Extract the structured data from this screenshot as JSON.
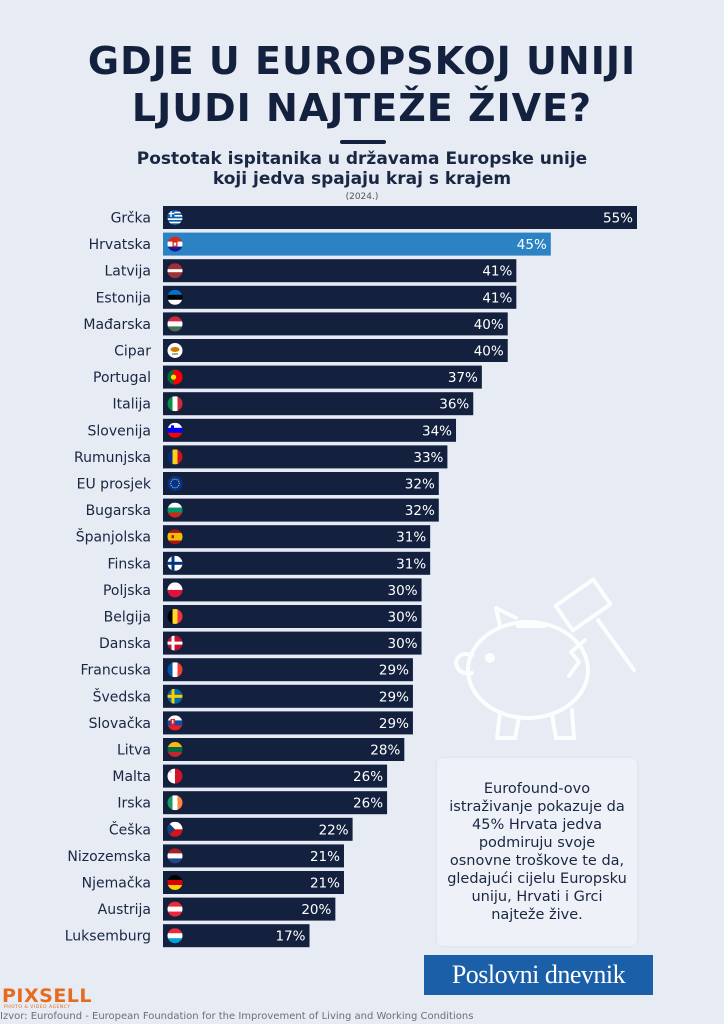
{
  "header": {
    "title_line1": "GDJE U EUROPSKOJ UNIJI",
    "title_line2": "LJUDI NAJTEŽE ŽIVE?",
    "subtitle_line1": "Postotak ispitanika u državama Europske unije",
    "subtitle_line2": "koji jedva spajaju kraj s krajem",
    "year": "(2024.)"
  },
  "chart_data": {
    "type": "bar",
    "orientation": "horizontal",
    "title": "",
    "xlabel": "",
    "ylabel": "",
    "xlim": [
      0,
      55
    ],
    "grid": false,
    "value_suffix": "%",
    "bar_color": "#13213f",
    "highlight_color": "#2c83c4",
    "highlight_index": 1,
    "categories": [
      "Grčka",
      "Hrvatska",
      "Latvija",
      "Estonija",
      "Mađarska",
      "Cipar",
      "Portugal",
      "Italija",
      "Slovenija",
      "Rumunjska",
      "EU prosjek",
      "Bugarska",
      "Španjolska",
      "Finska",
      "Poljska",
      "Belgija",
      "Danska",
      "Francuska",
      "Švedska",
      "Slovačka",
      "Litva",
      "Malta",
      "Irska",
      "Češka",
      "Nizozemska",
      "Njemačka",
      "Austrija",
      "Luksemburg"
    ],
    "values": [
      55,
      45,
      41,
      41,
      40,
      40,
      37,
      36,
      34,
      33,
      32,
      32,
      31,
      31,
      30,
      30,
      30,
      29,
      29,
      29,
      28,
      26,
      26,
      22,
      21,
      21,
      20,
      17
    ],
    "flags": [
      "greece-flag-icon",
      "croatia-flag-icon",
      "latvia-flag-icon",
      "estonia-flag-icon",
      "hungary-flag-icon",
      "cyprus-flag-icon",
      "portugal-flag-icon",
      "italy-flag-icon",
      "slovenia-flag-icon",
      "romania-flag-icon",
      "eu-flag-icon",
      "bulgaria-flag-icon",
      "spain-flag-icon",
      "finland-flag-icon",
      "poland-flag-icon",
      "belgium-flag-icon",
      "denmark-flag-icon",
      "france-flag-icon",
      "sweden-flag-icon",
      "slovakia-flag-icon",
      "lithuania-flag-icon",
      "malta-flag-icon",
      "ireland-flag-icon",
      "czechia-flag-icon",
      "netherlands-flag-icon",
      "germany-flag-icon",
      "austria-flag-icon",
      "luxembourg-flag-icon"
    ]
  },
  "info_box": {
    "text": "Eurofound-ovo istraživanje pokazuje da 45% Hrvata jedva podmiruju svoje osnovne troškove te da, gledajući cijelu Europsku uniju, Hrvati i Grci najteže žive."
  },
  "brand": {
    "name": "Poslovni dnevnik"
  },
  "footer": {
    "agency": "PIXSELL",
    "agency_sub": "PHOTO & VIDEO AGENCY",
    "source": "Izvor: Eurofound - European Foundation for the Improvement of Living and Working Conditions"
  },
  "decoration": {
    "icon": "piggy-bank-hammer-icon"
  }
}
